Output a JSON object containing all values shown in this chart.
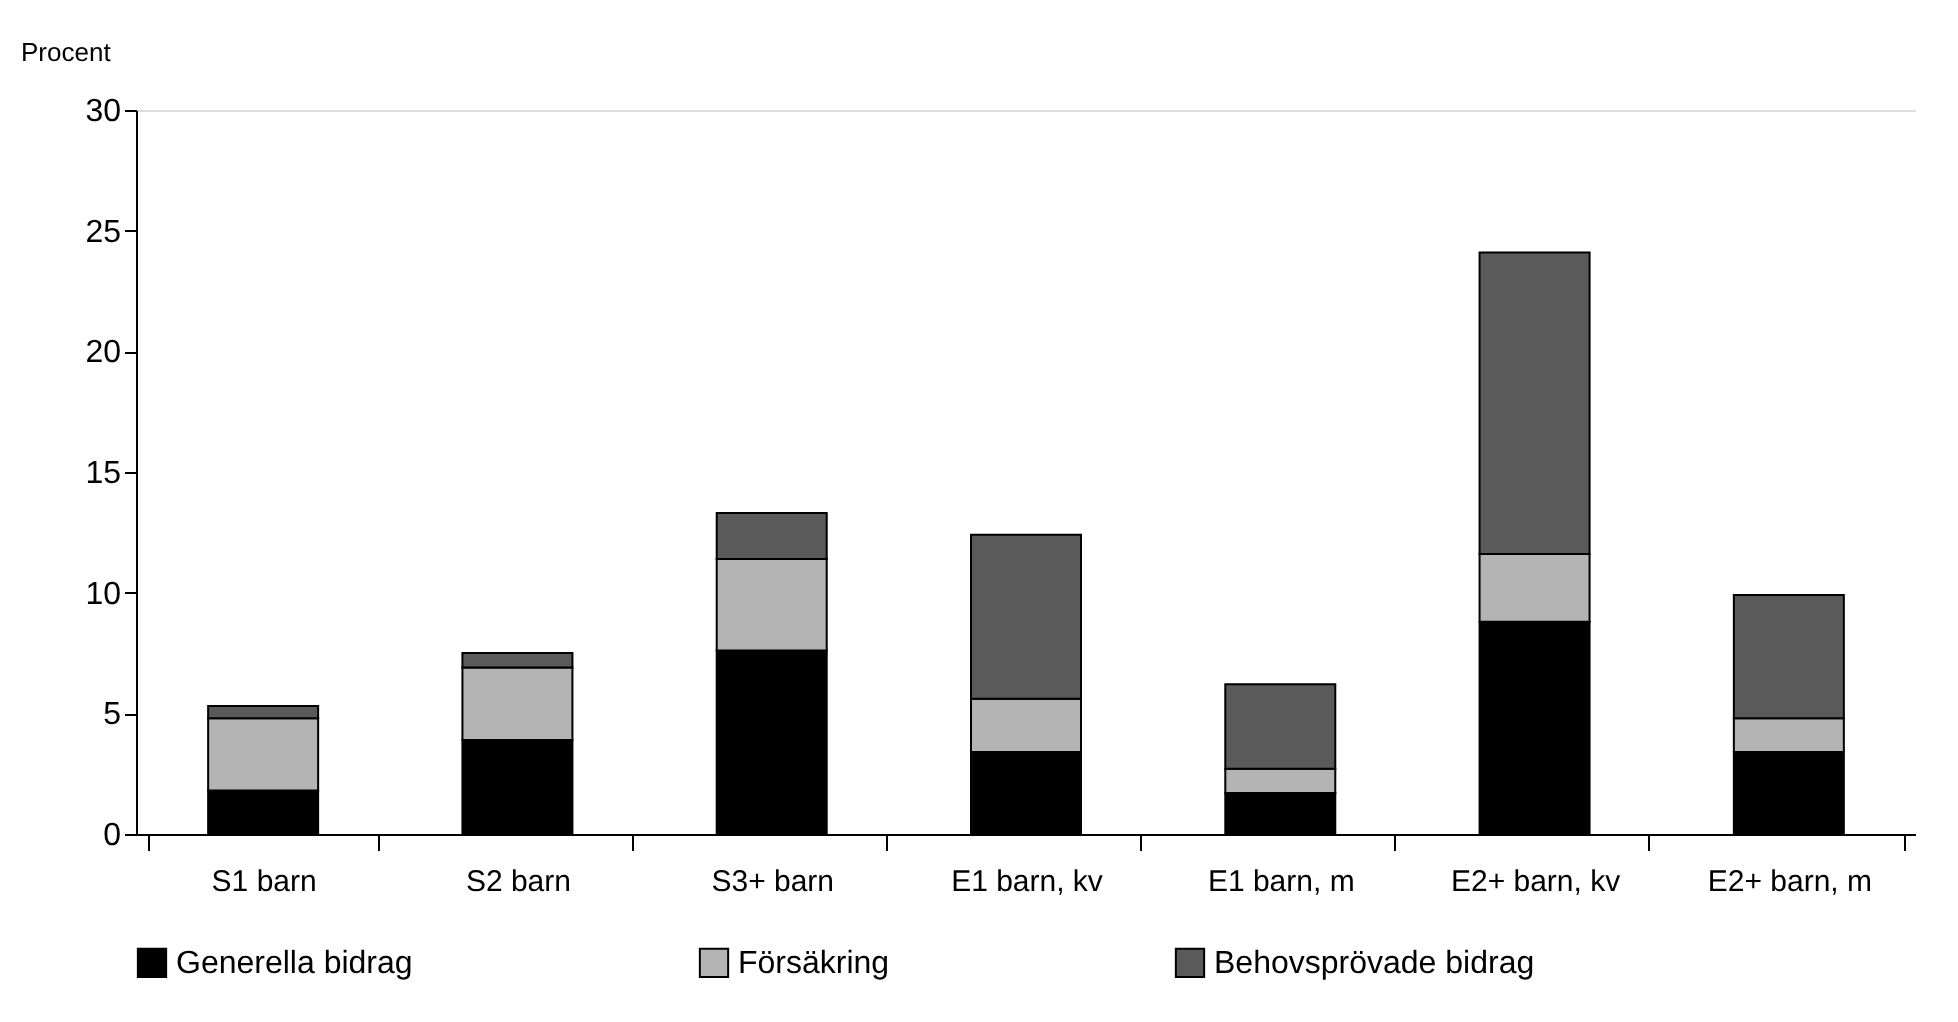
{
  "chart_data": {
    "type": "bar",
    "stacked": true,
    "ylabel": "Procent",
    "categories": [
      "S1 barn",
      "S2 barn",
      "S3+ barn",
      "E1 barn, kv",
      "E1 barn, m",
      "E2+ barn, kv",
      "E2+ barn, m"
    ],
    "series": [
      {
        "name": "Generella bidrag",
        "color": "#000000",
        "values": [
          1.8,
          3.9,
          7.6,
          3.4,
          1.7,
          8.8,
          3.4
        ]
      },
      {
        "name": "Försäkring",
        "color": "#b4b4b4",
        "values": [
          3.0,
          3.0,
          3.8,
          2.2,
          1.0,
          2.8,
          1.4
        ]
      },
      {
        "name": "Behovsprövade bidrag",
        "color": "#5a5a5a",
        "values": [
          0.5,
          0.6,
          1.9,
          6.8,
          3.5,
          12.5,
          5.1
        ]
      }
    ],
    "ylim": [
      0,
      30
    ],
    "yticks": [
      0,
      5,
      10,
      15,
      20,
      25,
      30
    ],
    "grid": false,
    "legend": "bottom"
  }
}
